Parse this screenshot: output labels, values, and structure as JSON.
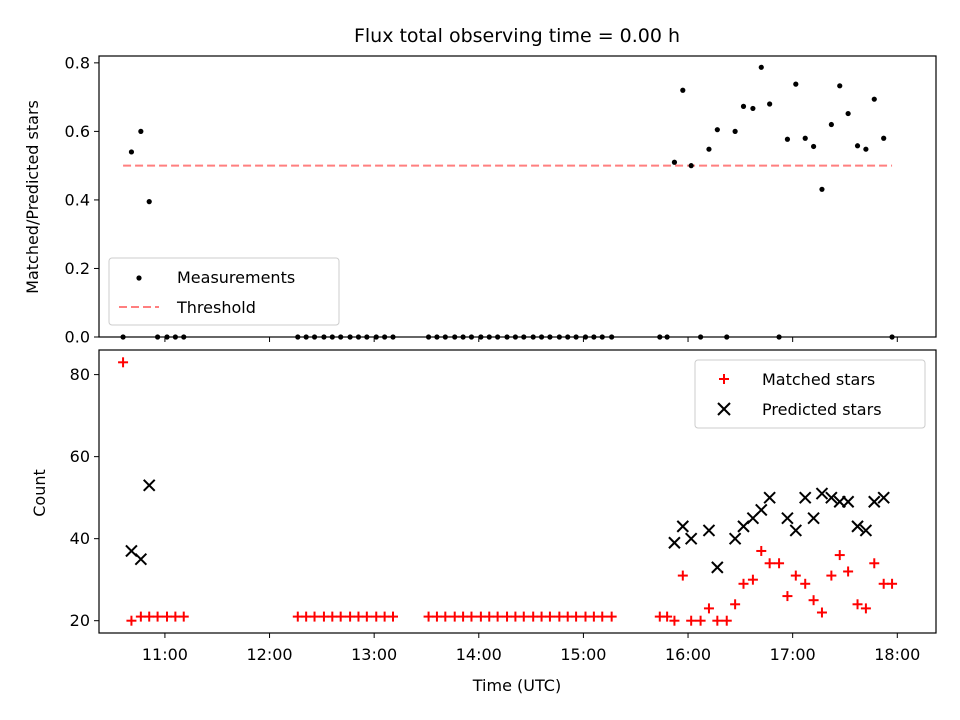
{
  "title": "Flux total observing time = 0.00 h",
  "colors": {
    "measurement": "#000000",
    "threshold": "#ff7f7f",
    "matched": "#ff0000",
    "predicted": "#000000"
  },
  "chart_data": [
    {
      "type": "scatter",
      "title": "Flux total observing time = 0.00 h",
      "xlabel": "",
      "ylabel": "Matched/Predicted stars",
      "xlim": [
        10.37,
        18.37
      ],
      "ylim": [
        0,
        0.82
      ],
      "yticks": [
        "0.0",
        "0.2",
        "0.4",
        "0.6",
        "0.8"
      ],
      "legend_position": "lower-left",
      "series": [
        {
          "name": "Measurements",
          "marker": "dot",
          "x": [
            10.6,
            10.68,
            10.77,
            10.85,
            10.93,
            11.02,
            11.1,
            11.18,
            12.27,
            12.35,
            12.43,
            12.52,
            12.6,
            12.68,
            12.77,
            12.85,
            12.93,
            13.02,
            13.1,
            13.18,
            13.52,
            13.6,
            13.68,
            13.77,
            13.85,
            13.93,
            14.02,
            14.1,
            14.18,
            14.27,
            14.35,
            14.43,
            14.52,
            14.6,
            14.68,
            14.77,
            14.85,
            14.93,
            15.02,
            15.1,
            15.18,
            15.27,
            15.73,
            15.8,
            15.87,
            15.95,
            16.03,
            16.12,
            16.2,
            16.28,
            16.37,
            16.45,
            16.53,
            16.62,
            16.7,
            16.78,
            16.87,
            16.95,
            17.03,
            17.12,
            17.2,
            17.28,
            17.37,
            17.45,
            17.53,
            17.62,
            17.7,
            17.78,
            17.87,
            17.95
          ],
          "y": [
            0.0,
            0.54,
            0.6,
            0.395,
            0.0,
            0.0,
            0.0,
            0.0,
            0.0,
            0.0,
            0.0,
            0.0,
            0.0,
            0.0,
            0.0,
            0.0,
            0.0,
            0.0,
            0.0,
            0.0,
            0.0,
            0.0,
            0.0,
            0.0,
            0.0,
            0.0,
            0.0,
            0.0,
            0.0,
            0.0,
            0.0,
            0.0,
            0.0,
            0.0,
            0.0,
            0.0,
            0.0,
            0.0,
            0.0,
            0.0,
            0.0,
            0.0,
            0.0,
            0.0,
            0.51,
            0.72,
            0.5,
            0.0,
            0.548,
            0.605,
            0.0,
            0.6,
            0.673,
            0.667,
            0.787,
            0.68,
            0.0,
            0.577,
            0.738,
            0.58,
            0.556,
            0.431,
            0.62,
            0.733,
            0.652,
            0.558,
            0.548,
            0.694,
            0.58,
            0.0
          ]
        },
        {
          "name": "Threshold",
          "marker": "dashed-line",
          "x": [
            10.6,
            17.95
          ],
          "y": [
            0.5,
            0.5
          ]
        }
      ]
    },
    {
      "type": "scatter",
      "xlabel": "Time (UTC)",
      "ylabel": "Count",
      "xlim": [
        10.37,
        18.37
      ],
      "ylim": [
        17,
        86
      ],
      "xticks": [
        "11:00",
        "12:00",
        "13:00",
        "14:00",
        "15:00",
        "16:00",
        "17:00",
        "18:00"
      ],
      "yticks": [
        "20",
        "40",
        "60",
        "80"
      ],
      "legend_position": "upper-right",
      "series": [
        {
          "name": "Matched stars",
          "marker": "plus",
          "x": [
            10.6,
            10.68,
            10.77,
            10.85,
            10.93,
            11.02,
            11.1,
            11.18,
            12.27,
            12.35,
            12.43,
            12.52,
            12.6,
            12.68,
            12.77,
            12.85,
            12.93,
            13.02,
            13.1,
            13.18,
            13.52,
            13.6,
            13.68,
            13.77,
            13.85,
            13.93,
            14.02,
            14.1,
            14.18,
            14.27,
            14.35,
            14.43,
            14.52,
            14.6,
            14.68,
            14.77,
            14.85,
            14.93,
            15.02,
            15.1,
            15.18,
            15.27,
            15.73,
            15.8,
            15.87,
            15.95,
            16.03,
            16.12,
            16.2,
            16.28,
            16.37,
            16.45,
            16.53,
            16.62,
            16.7,
            16.78,
            16.87,
            16.95,
            17.03,
            17.12,
            17.2,
            17.28,
            17.37,
            17.45,
            17.53,
            17.62,
            17.7,
            17.78,
            17.87,
            17.95
          ],
          "y": [
            83,
            20,
            21,
            21,
            21,
            21,
            21,
            21,
            21,
            21,
            21,
            21,
            21,
            21,
            21,
            21,
            21,
            21,
            21,
            21,
            21,
            21,
            21,
            21,
            21,
            21,
            21,
            21,
            21,
            21,
            21,
            21,
            21,
            21,
            21,
            21,
            21,
            21,
            21,
            21,
            21,
            21,
            21,
            21,
            20,
            31,
            20,
            20,
            23,
            20,
            20,
            24,
            29,
            30,
            37,
            34,
            34,
            26,
            31,
            29,
            25,
            22,
            31,
            36,
            32,
            24,
            23,
            34,
            29,
            29
          ]
        },
        {
          "name": "Predicted stars",
          "marker": "x",
          "x": [
            10.68,
            10.77,
            10.85,
            15.87,
            15.95,
            16.03,
            16.2,
            16.28,
            16.45,
            16.53,
            16.62,
            16.7,
            16.78,
            16.95,
            17.03,
            17.12,
            17.2,
            17.28,
            17.37,
            17.45,
            17.53,
            17.62,
            17.7,
            17.78,
            17.87
          ],
          "y": [
            37,
            35,
            53,
            39,
            43,
            40,
            42,
            33,
            40,
            43,
            45,
            47,
            50,
            45,
            42,
            50,
            45,
            51,
            50,
            49,
            49,
            43,
            42,
            49,
            50
          ]
        }
      ]
    }
  ]
}
